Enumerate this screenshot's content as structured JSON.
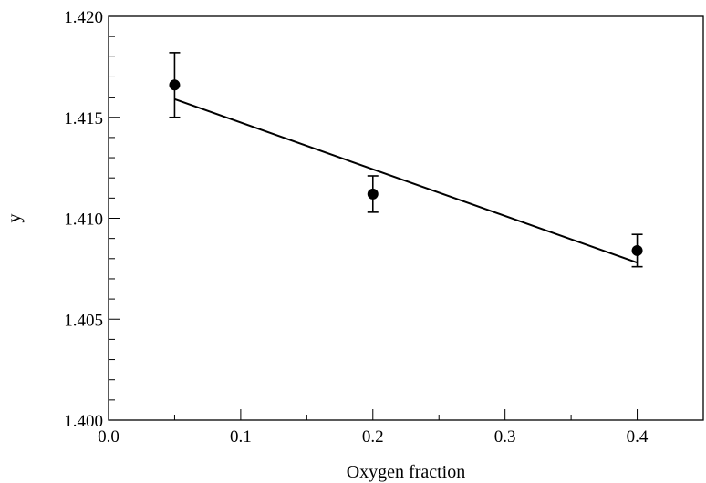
{
  "chart_data": {
    "type": "scatter",
    "xlabel": "Oxygen fraction",
    "ylabel": "y",
    "xlim": [
      0.0,
      0.45
    ],
    "ylim": [
      1.4,
      1.42
    ],
    "x_ticks": [
      0.0,
      0.1,
      0.2,
      0.3,
      0.4
    ],
    "x_tick_labels": [
      "0.0",
      "0.1",
      "0.2",
      "0.3",
      "0.4"
    ],
    "x_minor_step": 0.05,
    "y_ticks": [
      1.4,
      1.405,
      1.41,
      1.415,
      1.42
    ],
    "y_tick_labels": [
      "1.400",
      "1.405",
      "1.410",
      "1.415",
      "1.420"
    ],
    "y_minor_step": 0.001,
    "grid": false,
    "series": [
      {
        "kind": "points-with-error-bars",
        "x": [
          0.05,
          0.2,
          0.4
        ],
        "y": [
          1.4166,
          1.4112,
          1.4084
        ],
        "y_error": [
          0.0016,
          0.0009,
          0.0008
        ],
        "color": "#000000"
      },
      {
        "kind": "fit-line",
        "x": [
          0.05,
          0.4
        ],
        "y": [
          1.4159,
          1.4078
        ],
        "color": "#000000"
      }
    ]
  }
}
